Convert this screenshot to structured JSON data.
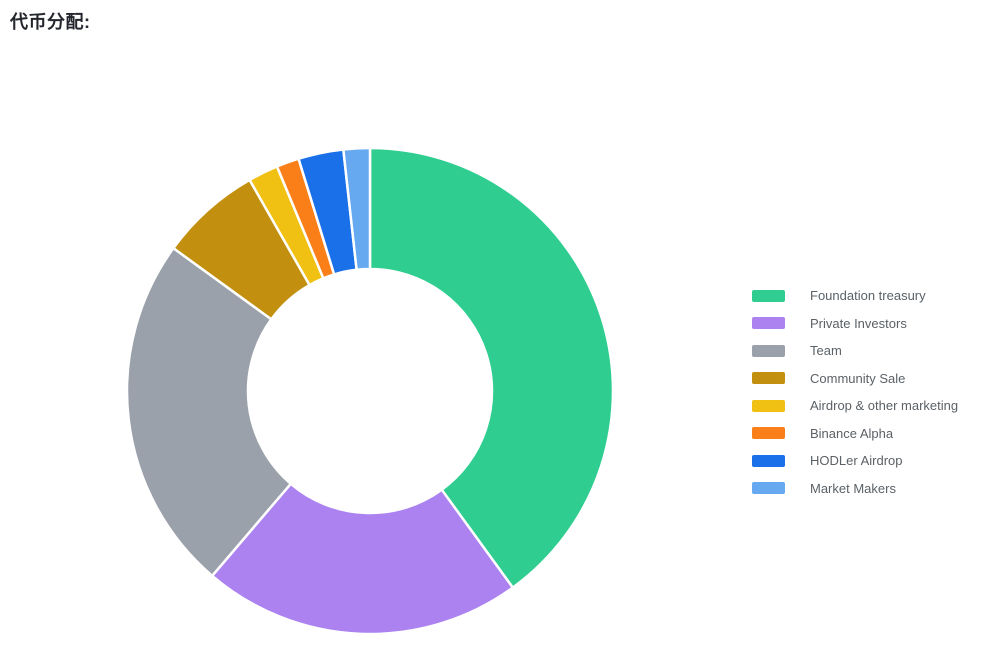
{
  "title": "代币分配:",
  "chart_data": {
    "type": "pie",
    "subtype": "donut",
    "title": "代币分配",
    "start_angle": "top",
    "direction": "clockwise",
    "inner_radius_ratio": 0.5,
    "legend_position": "right",
    "unit": "%",
    "labels": [
      "Foundation treasury",
      "Private Investors",
      "Team",
      "Community Sale",
      "Airdrop & other marketing",
      "Binance Alpha",
      "HODLer Airdrop",
      "Market Makers"
    ],
    "values": [
      40,
      21.25,
      23.75,
      6.75,
      2,
      1.5,
      3,
      1.75
    ],
    "colors": [
      "#2fce90",
      "#ab82f0",
      "#9aa1ab",
      "#c2900e",
      "#f0c013",
      "#fa7f18",
      "#1a70e8",
      "#66a9f0"
    ],
    "slice_border_color": "#ffffff"
  }
}
